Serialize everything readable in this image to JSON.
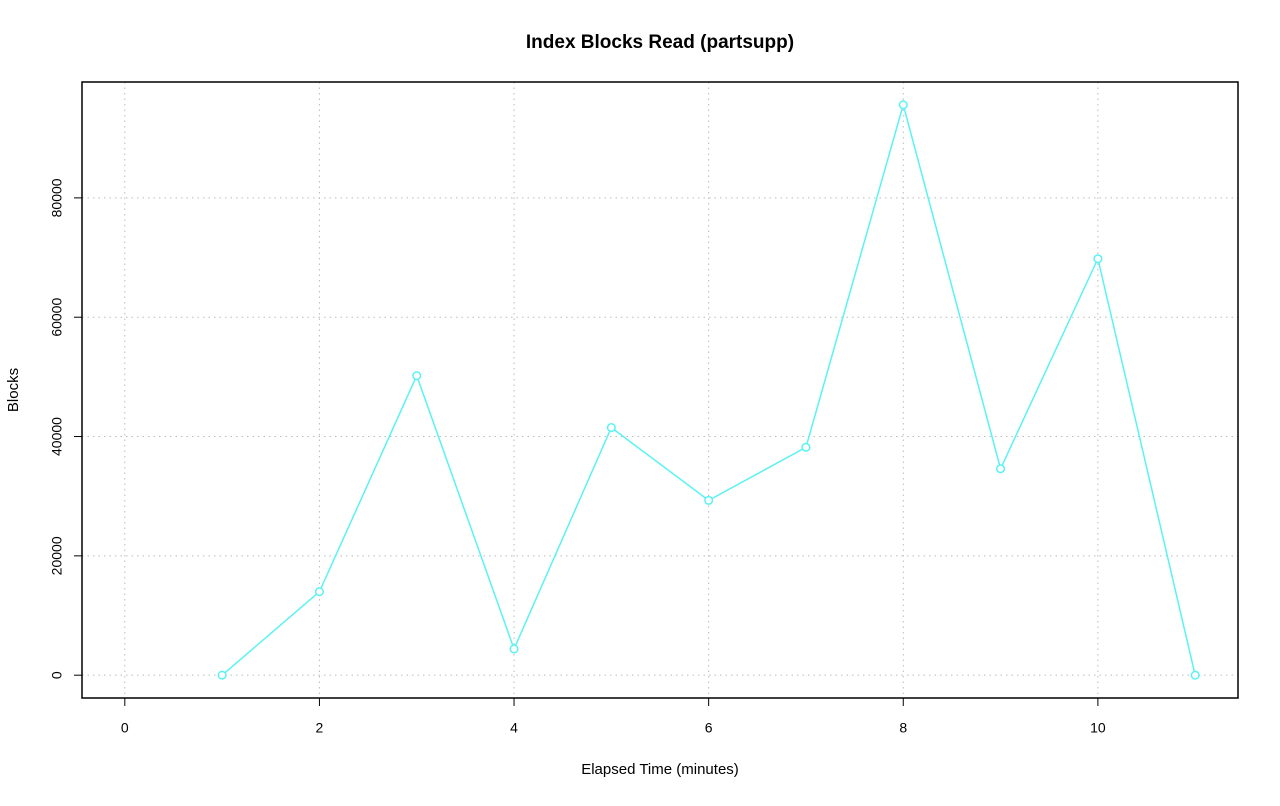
{
  "chart_data": {
    "type": "line",
    "title": "Index Blocks Read (partsupp)",
    "x_label": "Elapsed Time (minutes)",
    "y_label": "Blocks",
    "x": [
      1,
      2,
      3,
      4,
      5,
      6,
      7,
      8,
      9,
      10,
      11
    ],
    "values": [
      0,
      14000,
      50200,
      4400,
      41500,
      29300,
      38200,
      95600,
      34600,
      69800,
      0
    ],
    "color": "#5cf2f2",
    "xlim": [
      -0.44,
      11.44
    ],
    "ylim": [
      -3824,
      99424
    ],
    "xticks": [
      0,
      2,
      4,
      6,
      8,
      10
    ],
    "yticks": [
      0,
      20000,
      40000,
      60000,
      80000
    ],
    "grid": true
  }
}
